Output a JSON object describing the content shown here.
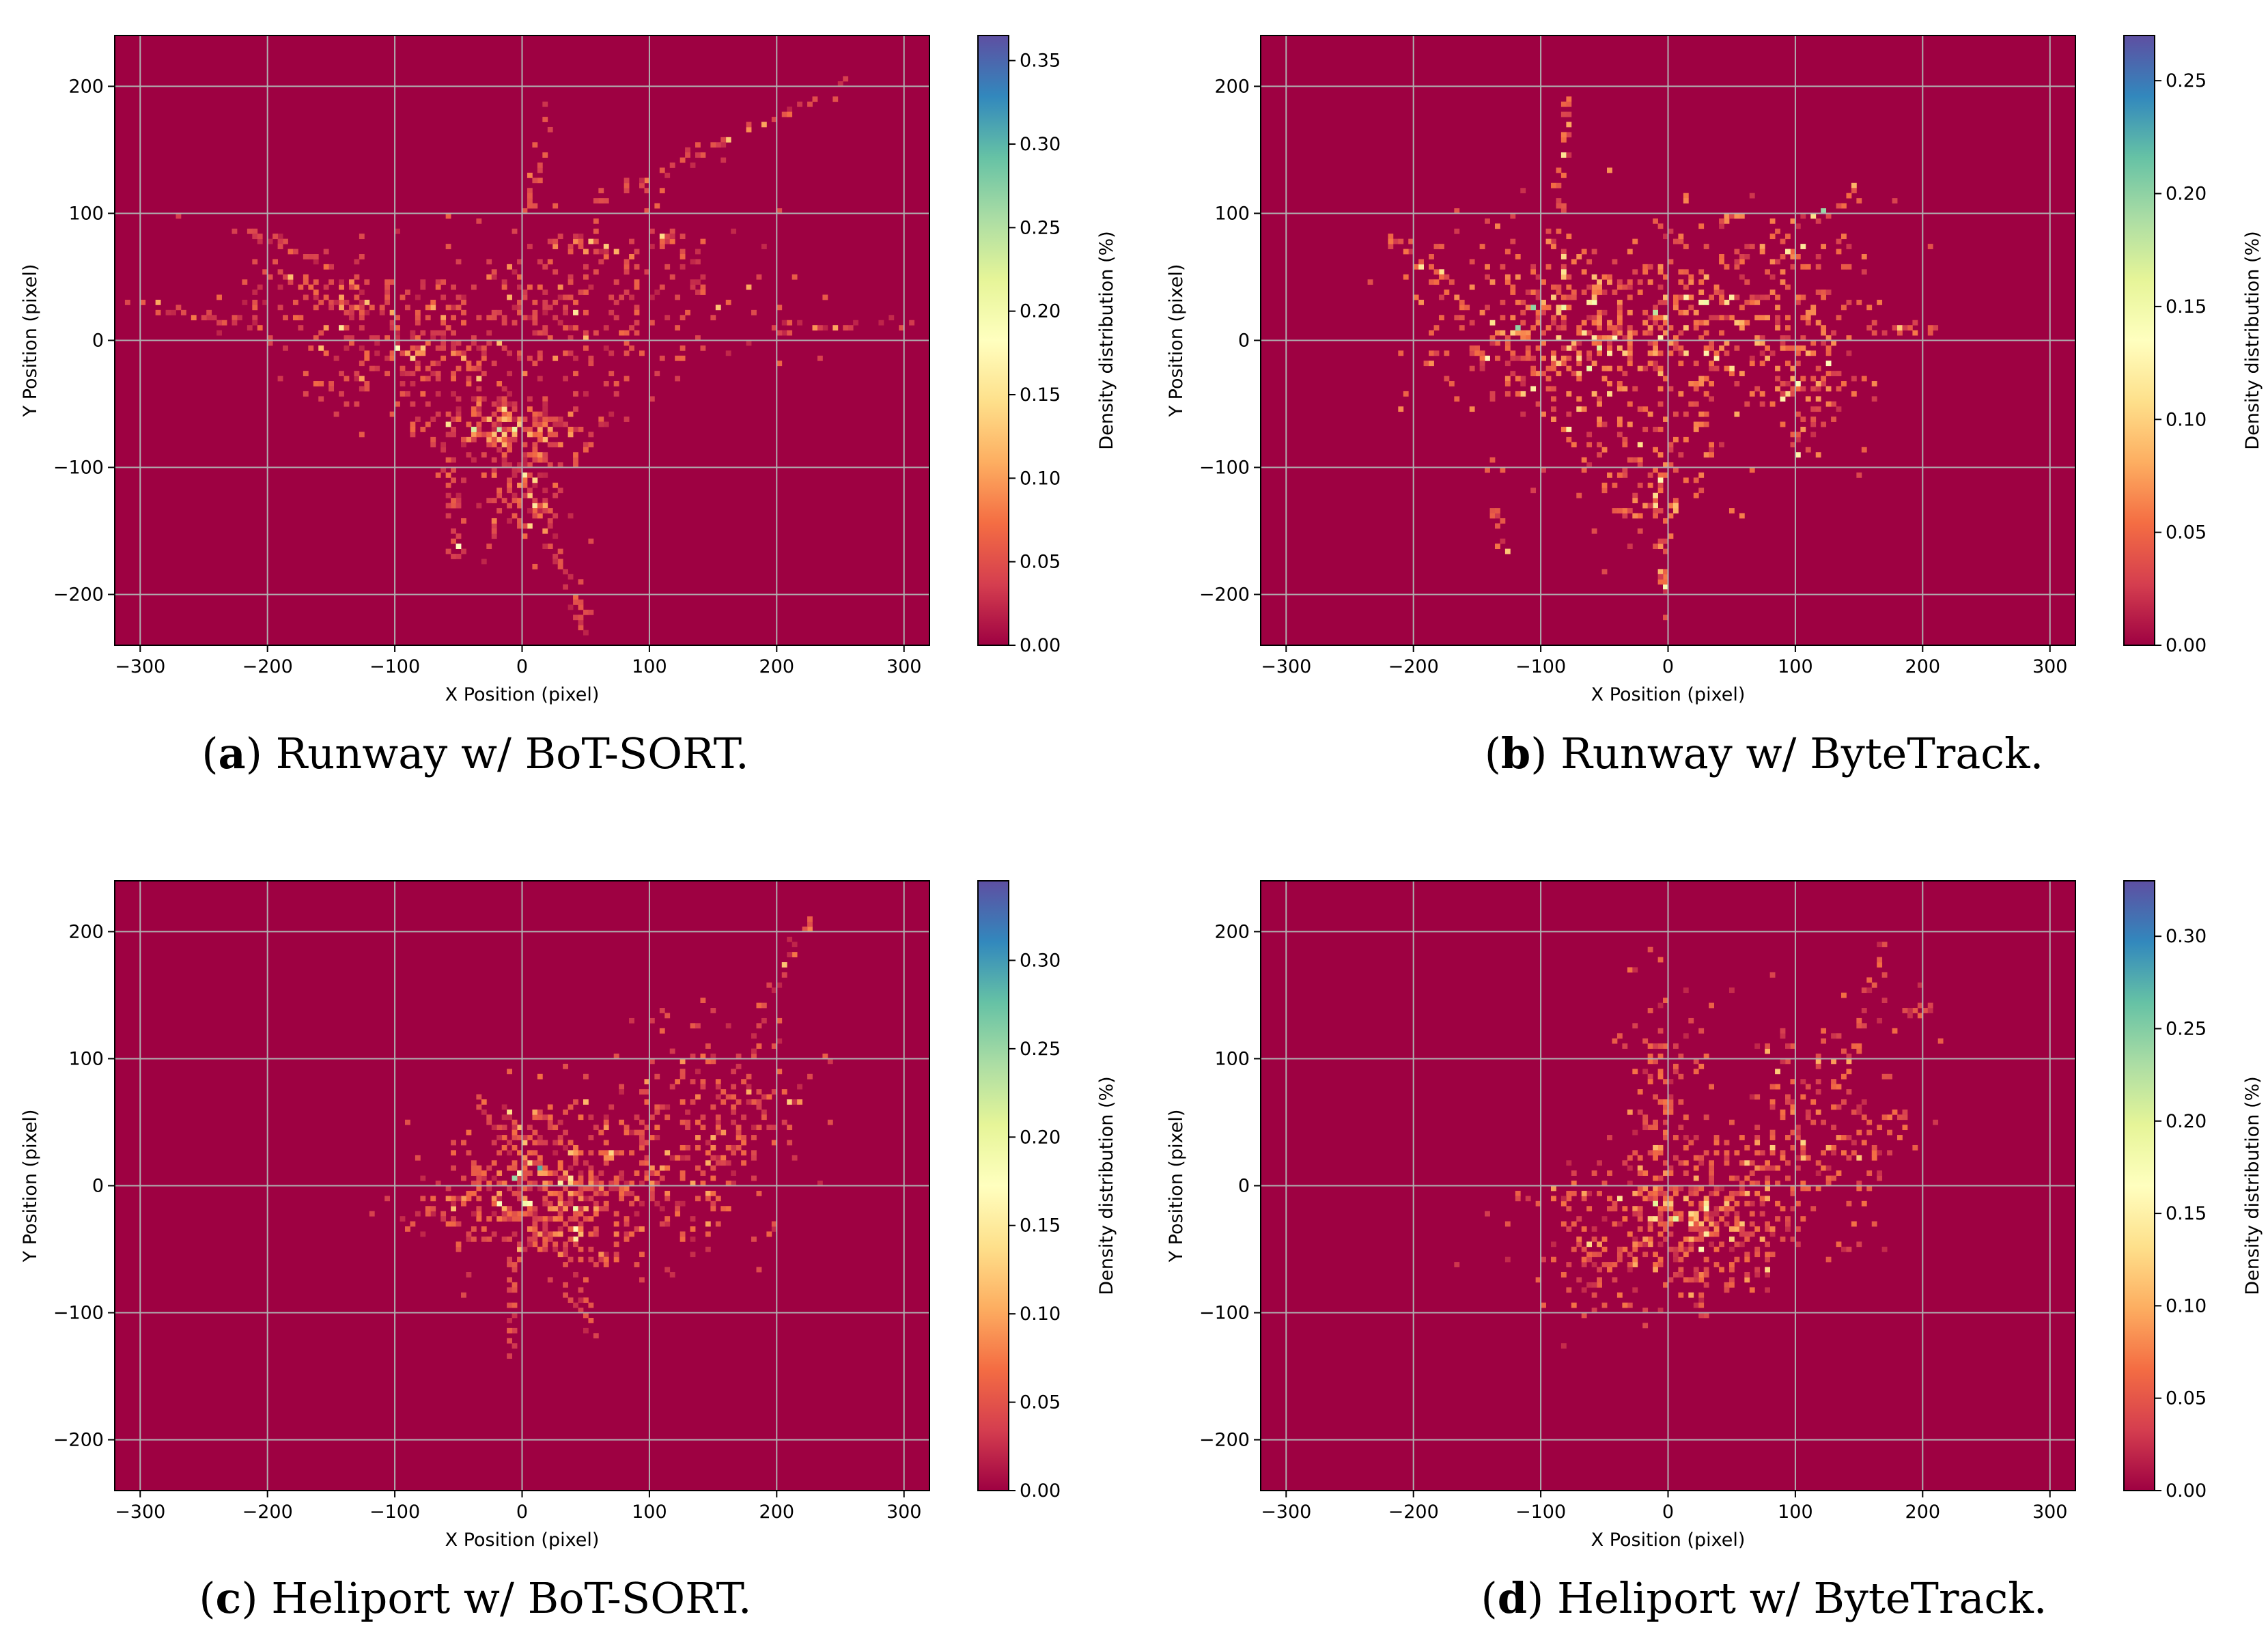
{
  "colors": {
    "background_zero": "#9e0142",
    "grid": "#b0b0b0",
    "colormap_spectral": [
      "#9e0142",
      "#d53e4f",
      "#f46d43",
      "#fdae61",
      "#fee08b",
      "#ffffbf",
      "#e6f598",
      "#abdda4",
      "#66c2a5",
      "#3288bd",
      "#5e4fa2"
    ]
  },
  "chart_data": [
    {
      "type": "heatmap",
      "id": "a",
      "caption_letter": "a",
      "caption_text": " Runway w/ BoT-SORT.",
      "xlabel": "X Position",
      "xlabel_unit": "(pixel)",
      "ylabel": "Y Position",
      "ylabel_unit": "(pixel)",
      "xlim": [
        -320,
        320
      ],
      "ylim": [
        -240,
        240
      ],
      "xticks": [
        -300,
        -200,
        -100,
        0,
        100,
        200,
        300
      ],
      "xtick_labels": [
        "−300",
        "−200",
        "−100",
        "0",
        "100",
        "200",
        "300"
      ],
      "yticks": [
        -200,
        -100,
        0,
        100,
        200
      ],
      "ytick_labels": [
        "−200",
        "−100",
        "0",
        "100",
        "200"
      ],
      "grid": true,
      "colorbar_label": "Density distribution (%)",
      "colorbar_max": 0.365,
      "colorbar_ticks": [
        0.0,
        0.05,
        0.1,
        0.15,
        0.2,
        0.25,
        0.3,
        0.35
      ],
      "colorbar_tick_labels": [
        "0.00",
        "0.05",
        "0.10",
        "0.15",
        "0.20",
        "0.25",
        "0.30",
        "0.35"
      ],
      "clusters": [
        {
          "x": -90,
          "y": -10,
          "sx": 45,
          "sy": 28,
          "n": 220
        },
        {
          "x": -10,
          "y": -70,
          "sx": 30,
          "sy": 14,
          "n": 190
        },
        {
          "x": -5,
          "y": -120,
          "sx": 20,
          "sy": 18,
          "n": 80
        },
        {
          "x": 20,
          "y": 20,
          "sx": 45,
          "sy": 35,
          "n": 150
        },
        {
          "x": -160,
          "y": 30,
          "sx": 35,
          "sy": 25,
          "n": 80
        },
        {
          "x": 130,
          "y": 40,
          "sx": 50,
          "sy": 30,
          "n": 80
        }
      ],
      "paths": [
        {
          "from": [
            0,
            -100
          ],
          "to": [
            55,
            -235
          ],
          "n": 45
        },
        {
          "from": [
            60,
            110
          ],
          "to": [
            260,
            205
          ],
          "n": 45
        },
        {
          "from": [
            -60,
            -90
          ],
          "to": [
            -50,
            -170
          ],
          "n": 25
        },
        {
          "from": [
            -310,
            30
          ],
          "to": [
            -200,
            10
          ],
          "n": 20
        },
        {
          "from": [
            20,
            80
          ],
          "to": [
            80,
            70
          ],
          "n": 22
        },
        {
          "from": [
            100,
            90
          ],
          "to": [
            140,
            60
          ],
          "n": 15
        },
        {
          "from": [
            200,
            10
          ],
          "to": [
            310,
            15
          ],
          "n": 20
        },
        {
          "from": [
            5,
            100
          ],
          "to": [
            20,
            185
          ],
          "n": 20
        },
        {
          "from": [
            -230,
            90
          ],
          "to": [
            -150,
            60
          ],
          "n": 20
        }
      ],
      "hotspots": [
        {
          "x": -40,
          "y": -72,
          "v": 0.23
        },
        {
          "x": -100,
          "y": -8,
          "v": 0.18
        },
        {
          "x": -60,
          "y": -65,
          "v": 0.15
        }
      ]
    },
    {
      "type": "heatmap",
      "id": "b",
      "caption_letter": "b",
      "caption_text": " Runway w/ ByteTrack.",
      "xlabel": "X Position",
      "xlabel_unit": "(pixel)",
      "ylabel": "Y Position",
      "ylabel_unit": "(pixel)",
      "xlim": [
        -320,
        320
      ],
      "ylim": [
        -240,
        240
      ],
      "xticks": [
        -300,
        -200,
        -100,
        0,
        100,
        200,
        300
      ],
      "xtick_labels": [
        "−300",
        "−200",
        "−100",
        "0",
        "100",
        "200",
        "300"
      ],
      "yticks": [
        -200,
        -100,
        0,
        100,
        200
      ],
      "ytick_labels": [
        "−200",
        "−100",
        "0",
        "100",
        "200"
      ],
      "grid": true,
      "colorbar_label": "Density distribution (%)",
      "colorbar_max": 0.27,
      "colorbar_ticks": [
        0.0,
        0.05,
        0.1,
        0.15,
        0.2,
        0.25
      ],
      "colorbar_tick_labels": [
        "0.00",
        "0.05",
        "0.10",
        "0.15",
        "0.20",
        "0.25"
      ],
      "clusters": [
        {
          "x": -100,
          "y": 10,
          "sx": 50,
          "sy": 40,
          "n": 300
        },
        {
          "x": 0,
          "y": 10,
          "sx": 50,
          "sy": 40,
          "n": 280
        },
        {
          "x": 90,
          "y": 10,
          "sx": 40,
          "sy": 40,
          "n": 140
        },
        {
          "x": -20,
          "y": -110,
          "sx": 30,
          "sy": 25,
          "n": 80
        },
        {
          "x": 120,
          "y": -40,
          "sx": 25,
          "sy": 30,
          "n": 60
        }
      ],
      "paths": [
        {
          "from": [
            -10,
            -100
          ],
          "to": [
            0,
            -220
          ],
          "n": 30
        },
        {
          "from": [
            50,
            60
          ],
          "to": [
            150,
            120
          ],
          "n": 30
        },
        {
          "from": [
            -90,
            100
          ],
          "to": [
            -75,
            190
          ],
          "n": 20
        },
        {
          "from": [
            150,
            10
          ],
          "to": [
            210,
            10
          ],
          "n": 15
        },
        {
          "from": [
            -220,
            80
          ],
          "to": [
            -170,
            40
          ],
          "n": 18
        },
        {
          "from": [
            -140,
            -100
          ],
          "to": [
            -130,
            -165
          ],
          "n": 12
        }
      ],
      "hotspots": [
        {
          "x": -120,
          "y": 10,
          "v": 0.2
        },
        {
          "x": -10,
          "y": 20,
          "v": 0.18
        },
        {
          "x": -80,
          "y": -70,
          "v": 0.12
        }
      ]
    },
    {
      "type": "heatmap",
      "id": "c",
      "caption_letter": "c",
      "caption_text": " Heliport w/ BoT-SORT.",
      "xlabel": "X Position",
      "xlabel_unit": "(pixel)",
      "ylabel": "Y Position",
      "ylabel_unit": "(pixel)",
      "xlim": [
        -320,
        320
      ],
      "ylim": [
        -240,
        240
      ],
      "xticks": [
        -300,
        -200,
        -100,
        0,
        100,
        200,
        300
      ],
      "xtick_labels": [
        "−300",
        "−200",
        "−100",
        "0",
        "100",
        "200",
        "300"
      ],
      "yticks": [
        -200,
        -100,
        0,
        100,
        200
      ],
      "ytick_labels": [
        "−200",
        "−100",
        "0",
        "100",
        "200"
      ],
      "grid": true,
      "colorbar_label": "Density distribution (%)",
      "colorbar_max": 0.345,
      "colorbar_ticks": [
        0.0,
        0.05,
        0.1,
        0.15,
        0.2,
        0.25,
        0.3
      ],
      "colorbar_tick_labels": [
        "0.00",
        "0.05",
        "0.10",
        "0.15",
        "0.20",
        "0.25",
        "0.30"
      ],
      "clusters": [
        {
          "x": 10,
          "y": 5,
          "sx": 40,
          "sy": 30,
          "n": 380
        },
        {
          "x": 120,
          "y": 10,
          "sx": 40,
          "sy": 35,
          "n": 150
        },
        {
          "x": 150,
          "y": 70,
          "sx": 35,
          "sy": 35,
          "n": 130
        },
        {
          "x": 40,
          "y": -40,
          "sx": 35,
          "sy": 20,
          "n": 70
        }
      ],
      "paths": [
        {
          "from": [
            180,
            120
          ],
          "to": [
            225,
            210
          ],
          "n": 20
        },
        {
          "from": [
            -10,
            -60
          ],
          "to": [
            -5,
            -140
          ],
          "n": 15
        },
        {
          "from": [
            -100,
            -30
          ],
          "to": [
            -50,
            -10
          ],
          "n": 15
        },
        {
          "from": [
            40,
            -80
          ],
          "to": [
            60,
            -130
          ],
          "n": 10
        }
      ],
      "hotspots": [
        {
          "x": 15,
          "y": 12,
          "v": 0.22
        },
        {
          "x": -5,
          "y": 5,
          "v": 0.18
        },
        {
          "x": 30,
          "y": 0,
          "v": 0.15
        }
      ]
    },
    {
      "type": "heatmap",
      "id": "d",
      "caption_letter": "d",
      "caption_text": " Heliport w/ ByteTrack.",
      "xlabel": "X Position",
      "xlabel_unit": "(pixel)",
      "ylabel": "Y Position",
      "ylabel_unit": "(pixel)",
      "xlim": [
        -320,
        320
      ],
      "ylim": [
        -240,
        240
      ],
      "xticks": [
        -300,
        -200,
        -100,
        0,
        100,
        200,
        300
      ],
      "xtick_labels": [
        "−300",
        "−200",
        "−100",
        "0",
        "100",
        "200",
        "300"
      ],
      "yticks": [
        -200,
        -100,
        0,
        100,
        200
      ],
      "ytick_labels": [
        "−200",
        "−100",
        "0",
        "100",
        "200"
      ],
      "grid": true,
      "colorbar_label": "Density distribution (%)",
      "colorbar_max": 0.33,
      "colorbar_ticks": [
        0.0,
        0.05,
        0.1,
        0.15,
        0.2,
        0.25,
        0.3
      ],
      "colorbar_tick_labels": [
        "0.00",
        "0.05",
        "0.10",
        "0.15",
        "0.20",
        "0.25",
        "0.30"
      ],
      "clusters": [
        {
          "x": 20,
          "y": -20,
          "sx": 45,
          "sy": 30,
          "n": 380
        },
        {
          "x": 120,
          "y": 50,
          "sx": 40,
          "sy": 45,
          "n": 180
        },
        {
          "x": 0,
          "y": 80,
          "sx": 20,
          "sy": 40,
          "n": 80
        },
        {
          "x": -40,
          "y": -60,
          "sx": 40,
          "sy": 25,
          "n": 80
        }
      ],
      "paths": [
        {
          "from": [
            150,
            120
          ],
          "to": [
            170,
            200
          ],
          "n": 15
        },
        {
          "from": [
            -120,
            -10
          ],
          "to": [
            -60,
            -10
          ],
          "n": 15
        },
        {
          "from": [
            20,
            -60
          ],
          "to": [
            30,
            -110
          ],
          "n": 10
        },
        {
          "from": [
            170,
            140
          ],
          "to": [
            210,
            140
          ],
          "n": 10
        }
      ],
      "hotspots": [
        {
          "x": 5,
          "y": -25,
          "v": 0.2
        },
        {
          "x": 30,
          "y": -20,
          "v": 0.18
        },
        {
          "x": -10,
          "y": -15,
          "v": 0.14
        }
      ]
    }
  ]
}
